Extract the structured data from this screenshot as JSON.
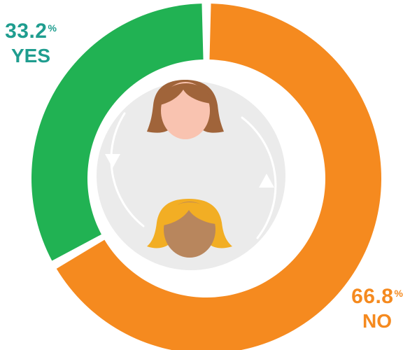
{
  "chart_data": {
    "type": "pie",
    "variant": "donut",
    "slices": [
      {
        "label": "YES",
        "value": 33.2,
        "value_text": "33.2",
        "unit": "%",
        "color": "#21b253",
        "label_color": "#1f9d8f"
      },
      {
        "label": "NO",
        "value": 66.8,
        "value_text": "66.8",
        "unit": "%",
        "color": "#f58a1f",
        "label_color": "#f58a1f"
      }
    ],
    "center_illustration": {
      "icons": [
        "woman-brown-hair-icon",
        "woman-blonde-hair-icon",
        "cycle-arrows-icon"
      ],
      "colors": {
        "disc": "#ebebeb",
        "arrows": "#ffffff",
        "brown_hair": "#a0643a",
        "blonde_hair": "#f2ae24",
        "light_skin": "#f9c3b0",
        "tan_skin": "#b8865d"
      }
    }
  }
}
